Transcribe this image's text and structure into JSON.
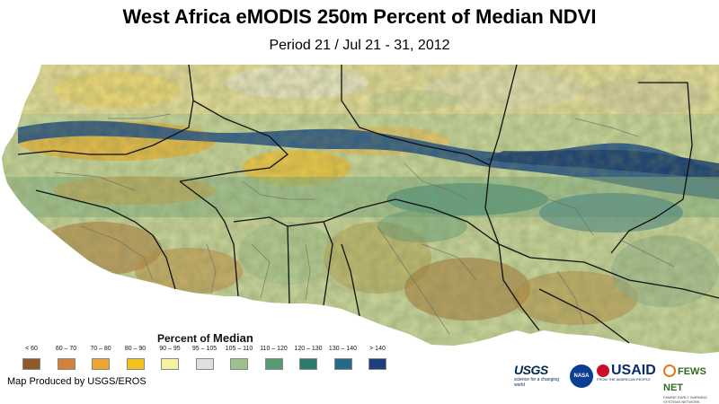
{
  "title": "West Africa eMODIS 250m Percent of Median NDVI",
  "subtitle": "Period 21 / Jul 21 - 31, 2012",
  "legend": {
    "title_a": "Percent of",
    "title_b": "Median",
    "items": [
      {
        "label": "< 60",
        "color": "#8c5a2b"
      },
      {
        "label": "60 – 70",
        "color": "#d2823c"
      },
      {
        "label": "70 – 80",
        "color": "#e8a632"
      },
      {
        "label": "80 – 90",
        "color": "#f4c21c"
      },
      {
        "label": "90 – 95",
        "color": "#f7f0a0"
      },
      {
        "label": "95 – 105",
        "color": "#e0e0de"
      },
      {
        "label": "105 – 110",
        "color": "#9ec08a"
      },
      {
        "label": "110 – 120",
        "color": "#5a9a72"
      },
      {
        "label": "120 – 130",
        "color": "#2d7a6e"
      },
      {
        "label": "130 – 140",
        "color": "#256a86"
      },
      {
        "label": "> 140",
        "color": "#1f3f7a"
      }
    ]
  },
  "credit": "Map Produced by USGS/EROS",
  "logos": {
    "usgs": "USGS",
    "usgs_tag": "science for a changing world",
    "nasa": "NASA",
    "usaid": "USAID",
    "usaid_tag": "FROM THE AMERICAN PEOPLE",
    "fews": "FEWS NET",
    "fews_tag": "FAMINE EARLY WARNING SYSTEMS NETWORK"
  },
  "map": {
    "ocean_color": "#ffffff",
    "land_base_color": "#b9c98a"
  }
}
